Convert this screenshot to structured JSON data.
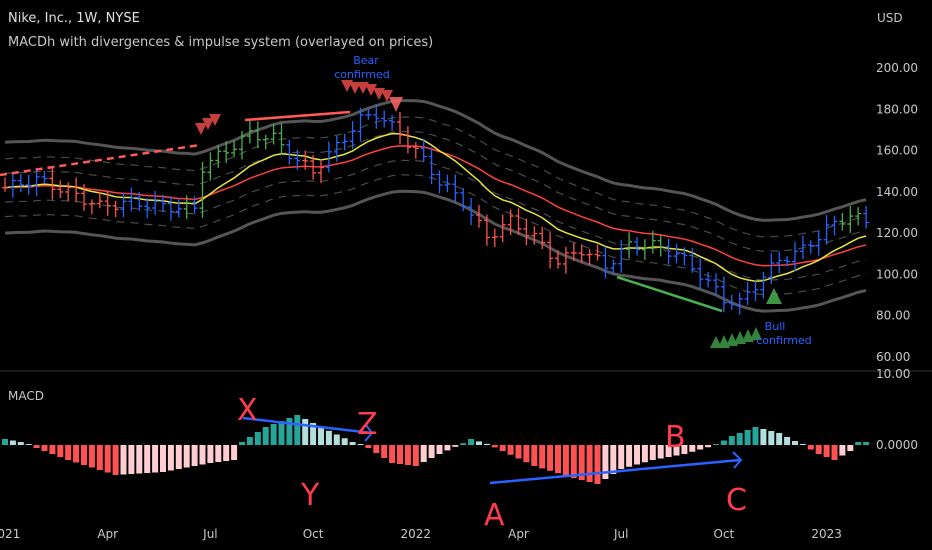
{
  "header": {
    "title": "Nike, Inc., 1W, NYSE",
    "indicator": "MACDh with divergences & impulse system (overlayed on prices)",
    "currency": "USD"
  },
  "chart_data": [
    {
      "type": "line",
      "title": "Nike, Inc., 1W, NYSE",
      "ylabel": "USD",
      "ylim": [
        60,
        210
      ],
      "y_ticks": [
        "200.00",
        "180.00",
        "160.00",
        "140.00",
        "120.00",
        "100.00",
        "80.00",
        "60.00"
      ],
      "y_tick_values": [
        200,
        180,
        160,
        140,
        120,
        100,
        80,
        60
      ],
      "x_ticks": [
        {
          "label": "2021",
          "week": 0
        },
        {
          "label": "Apr",
          "week": 13
        },
        {
          "label": "Jul",
          "week": 26
        },
        {
          "label": "Oct",
          "week": 39
        },
        {
          "label": "2022",
          "week": 52
        },
        {
          "label": "Apr",
          "week": 65
        },
        {
          "label": "Jul",
          "week": 78
        },
        {
          "label": "Oct",
          "week": 91
        },
        {
          "label": "2023",
          "week": 104
        }
      ],
      "weekly_close_keypoints": [
        [
          0,
          142
        ],
        [
          4,
          146
        ],
        [
          8,
          140
        ],
        [
          12,
          133
        ],
        [
          16,
          135
        ],
        [
          20,
          133
        ],
        [
          24,
          132
        ],
        [
          25,
          152
        ],
        [
          28,
          160
        ],
        [
          31,
          168
        ],
        [
          34,
          166
        ],
        [
          37,
          155
        ],
        [
          39,
          150
        ],
        [
          42,
          162
        ],
        [
          45,
          175
        ],
        [
          47,
          178
        ],
        [
          50,
          168
        ],
        [
          52,
          160
        ],
        [
          55,
          145
        ],
        [
          58,
          135
        ],
        [
          61,
          118
        ],
        [
          64,
          126
        ],
        [
          67,
          118
        ],
        [
          70,
          106
        ],
        [
          73,
          112
        ],
        [
          76,
          104
        ],
        [
          79,
          114
        ],
        [
          82,
          114
        ],
        [
          85,
          110
        ],
        [
          88,
          100
        ],
        [
          91,
          88
        ],
        [
          93,
          86
        ],
        [
          95,
          95
        ],
        [
          98,
          107
        ],
        [
          101,
          112
        ],
        [
          104,
          122
        ],
        [
          107,
          129
        ],
        [
          109,
          125
        ]
      ],
      "annotations": {
        "bear": "Bear\nconfirmed",
        "bear_line1": "Bear",
        "bear_line2": "confirmed",
        "bull_line1": "Bull",
        "bull_line2": "confirmed"
      },
      "colors": {
        "up": "#26a69a",
        "bull": "#4caf50",
        "bear": "#ff5252",
        "neutral": "#2962ff",
        "ema_fast": "#e6e63c",
        "ema_slow": "#ff4040",
        "band": "#7a7a7a"
      }
    },
    {
      "type": "bar",
      "title": "MACD",
      "y_ticks": [
        "10.00",
        "0.0000"
      ],
      "histogram_keypoints": [
        [
          0,
          1
        ],
        [
          2,
          0.5
        ],
        [
          4,
          -0.5
        ],
        [
          8,
          -2.5
        ],
        [
          14,
          -5
        ],
        [
          20,
          -4.5
        ],
        [
          26,
          -3
        ],
        [
          29,
          -2.5
        ],
        [
          30,
          0.5
        ],
        [
          33,
          3
        ],
        [
          37,
          5
        ],
        [
          40,
          3
        ],
        [
          44,
          0.5
        ],
        [
          46,
          -0.5
        ],
        [
          49,
          -3
        ],
        [
          52,
          -3.5
        ],
        [
          55,
          -1.5
        ],
        [
          58,
          0.3
        ],
        [
          59,
          1
        ],
        [
          61,
          0.2
        ],
        [
          63,
          -1
        ],
        [
          67,
          -3.5
        ],
        [
          72,
          -5.5
        ],
        [
          75,
          -6.5
        ],
        [
          78,
          -4
        ],
        [
          82,
          -2.5
        ],
        [
          86,
          -1.5
        ],
        [
          90,
          0
        ],
        [
          92,
          1.5
        ],
        [
          95,
          3
        ],
        [
          98,
          2
        ],
        [
          101,
          0
        ],
        [
          103,
          -1.5
        ],
        [
          105,
          -2.5
        ],
        [
          107,
          -1
        ],
        [
          108,
          0.5
        ]
      ],
      "divergence_labels": [
        "X",
        "Z",
        "Y",
        "A",
        "B",
        "C"
      ],
      "colors": {
        "pos_rising": "#26a69a",
        "pos_falling": "#b2dfdb",
        "neg_falling": "#ff5252",
        "neg_rising": "#ffcdd2"
      }
    }
  ]
}
